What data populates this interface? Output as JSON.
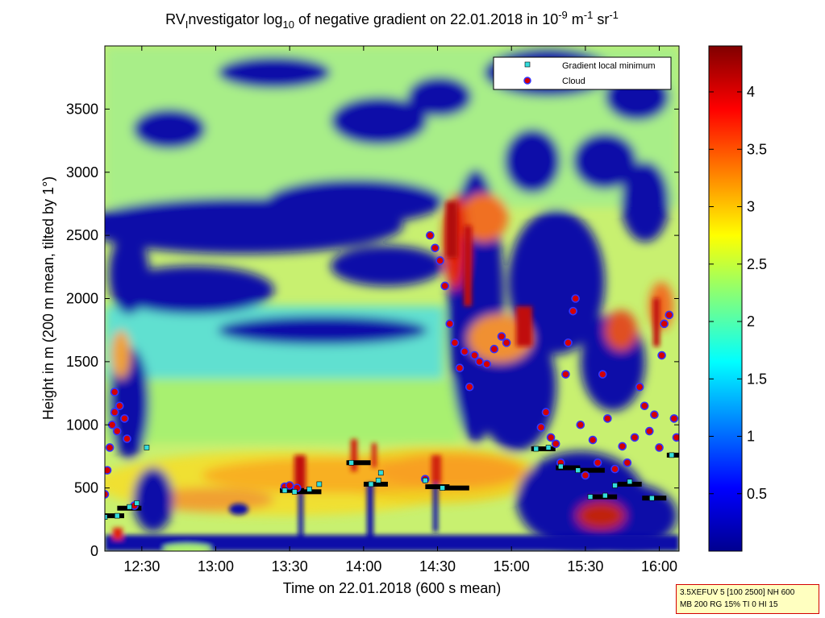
{
  "chart_data": {
    "type": "heatmap",
    "title": {
      "prefix": "RV",
      "prefix_sub": "I",
      "main": "nvestigator log",
      "main_sub": "10",
      "rest": " of negative gradient on 22.01.2018 in 10",
      "exp1": "-9",
      "unit1": " m",
      "exp2": "-1",
      "unit2": " sr",
      "exp3": "-1"
    },
    "xlabel": "Time on 22.01.2018 (600 s mean)",
    "ylabel": "Height in m (200 m mean, tilted by 1°)",
    "xlim": [
      "12:15",
      "16:08"
    ],
    "ylim": [
      0,
      4000
    ],
    "x_ticks": [
      "12:30",
      "13:00",
      "13:30",
      "14:00",
      "14:30",
      "15:00",
      "15:30",
      "16:00"
    ],
    "y_ticks": [
      0,
      500,
      1000,
      1500,
      2000,
      2500,
      3000,
      3500
    ],
    "colorbar": {
      "range": [
        0,
        4.4
      ],
      "ticks": [
        "0.5",
        "1",
        "1.5",
        "2",
        "2.5",
        "3",
        "3.5",
        "4"
      ],
      "colormap": "jet"
    },
    "legend": {
      "placement": "top-right",
      "entries": [
        {
          "label": "Gradient local minimum",
          "marker": "square",
          "color": "#33dddd"
        },
        {
          "label": "Cloud",
          "marker": "circle",
          "color": "#d40000",
          "edge": "#2222ff"
        }
      ]
    },
    "series": [
      {
        "name": "Gradient local minimum",
        "points": [
          [
            "12:15",
            270
          ],
          [
            "12:20",
            280
          ],
          [
            "12:25",
            350
          ],
          [
            "12:28",
            380
          ],
          [
            "12:32",
            820
          ],
          [
            "13:28",
            480
          ],
          [
            "13:32",
            470
          ],
          [
            "13:38",
            490
          ],
          [
            "13:42",
            530
          ],
          [
            "13:55",
            700
          ],
          [
            "14:03",
            530
          ],
          [
            "14:06",
            560
          ],
          [
            "14:07",
            620
          ],
          [
            "14:25",
            560
          ],
          [
            "14:32",
            500
          ],
          [
            "15:10",
            810
          ],
          [
            "15:15",
            820
          ],
          [
            "15:20",
            670
          ],
          [
            "15:27",
            640
          ],
          [
            "15:32",
            430
          ],
          [
            "15:38",
            440
          ],
          [
            "15:42",
            520
          ],
          [
            "15:48",
            550
          ],
          [
            "15:57",
            420
          ],
          [
            "16:05",
            760
          ]
        ]
      },
      {
        "name": "Cloud",
        "points": [
          [
            "12:15",
            450
          ],
          [
            "12:16",
            640
          ],
          [
            "12:17",
            820
          ],
          [
            "12:18",
            1000
          ],
          [
            "12:19",
            1100
          ],
          [
            "12:19",
            1260
          ],
          [
            "12:20",
            950
          ],
          [
            "12:21",
            1150
          ],
          [
            "12:23",
            1050
          ],
          [
            "12:24",
            890
          ],
          [
            "12:27",
            360
          ],
          [
            "13:28",
            510
          ],
          [
            "13:30",
            520
          ],
          [
            "13:33",
            500
          ],
          [
            "14:25",
            570
          ],
          [
            "14:27",
            2500
          ],
          [
            "14:29",
            2400
          ],
          [
            "14:31",
            2300
          ],
          [
            "14:33",
            2100
          ],
          [
            "14:35",
            1800
          ],
          [
            "14:37",
            1650
          ],
          [
            "14:39",
            1450
          ],
          [
            "14:41",
            1580
          ],
          [
            "14:43",
            1300
          ],
          [
            "14:45",
            1550
          ],
          [
            "14:47",
            1500
          ],
          [
            "14:50",
            1480
          ],
          [
            "14:53",
            1600
          ],
          [
            "14:56",
            1700
          ],
          [
            "14:58",
            1650
          ],
          [
            "15:12",
            980
          ],
          [
            "15:14",
            1100
          ],
          [
            "15:16",
            900
          ],
          [
            "15:18",
            850
          ],
          [
            "15:20",
            700
          ],
          [
            "15:22",
            1400
          ],
          [
            "15:23",
            1650
          ],
          [
            "15:25",
            1900
          ],
          [
            "15:26",
            2000
          ],
          [
            "15:28",
            1000
          ],
          [
            "15:30",
            600
          ],
          [
            "15:33",
            880
          ],
          [
            "15:35",
            700
          ],
          [
            "15:37",
            1400
          ],
          [
            "15:39",
            1050
          ],
          [
            "15:42",
            650
          ],
          [
            "15:45",
            830
          ],
          [
            "15:47",
            700
          ],
          [
            "15:50",
            900
          ],
          [
            "15:52",
            1300
          ],
          [
            "15:54",
            1150
          ],
          [
            "15:56",
            950
          ],
          [
            "15:58",
            1080
          ],
          [
            "16:00",
            820
          ],
          [
            "16:01",
            1550
          ],
          [
            "16:02",
            1800
          ],
          [
            "16:04",
            1870
          ],
          [
            "16:06",
            1050
          ],
          [
            "16:07",
            900
          ]
        ]
      },
      {
        "name": "Boundary layer",
        "points": [
          [
            "12:15",
            280
          ],
          [
            "12:22",
            340
          ],
          [
            "13:28",
            480
          ],
          [
            "13:35",
            470
          ],
          [
            "13:55",
            700
          ],
          [
            "14:02",
            530
          ],
          [
            "14:27",
            510
          ],
          [
            "14:35",
            500
          ],
          [
            "15:10",
            810
          ],
          [
            "15:20",
            660
          ],
          [
            "15:30",
            640
          ],
          [
            "15:35",
            430
          ],
          [
            "15:45",
            530
          ],
          [
            "15:55",
            420
          ],
          [
            "16:05",
            760
          ]
        ]
      }
    ]
  },
  "info_box": {
    "line1": "3.5XEFUV 5 [100 2500] NH 600",
    "line2": "MB 200 RG 15% TI 0 HI 15"
  }
}
